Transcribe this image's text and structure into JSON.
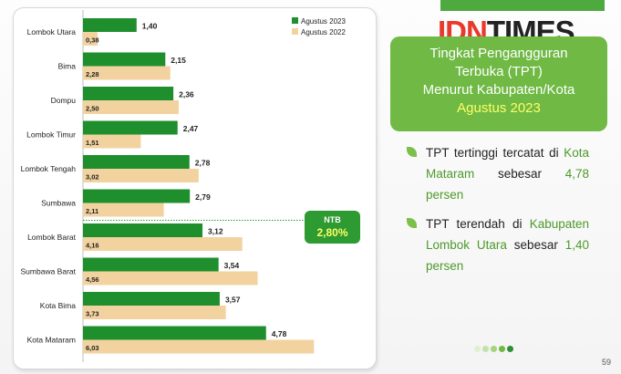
{
  "chart_data": {
    "type": "bar",
    "orientation": "horizontal",
    "categories": [
      "Lombok Utara",
      "Bima",
      "Dompu",
      "Lombok Timur",
      "Lombok Tengah",
      "Sumbawa",
      "Lombok Barat",
      "Sumbawa Barat",
      "Kota Bima",
      "Kota Mataram"
    ],
    "series": [
      {
        "name": "Agustus 2023",
        "color": "#1e8f2c",
        "values": [
          1.4,
          2.15,
          2.36,
          2.47,
          2.78,
          2.79,
          3.12,
          3.54,
          3.57,
          4.78
        ],
        "labels": [
          "1,40",
          "2,15",
          "2,36",
          "2,47",
          "2,78",
          "2,79",
          "3,12",
          "3,54",
          "3,57",
          "4,78"
        ]
      },
      {
        "name": "Agustus 2022",
        "color": "#f2d3a0",
        "values": [
          0.38,
          2.28,
          2.5,
          1.51,
          3.02,
          2.11,
          4.16,
          4.56,
          3.73,
          6.03
        ],
        "labels": [
          "0,38",
          "2,28",
          "2,50",
          "1,51",
          "3,02",
          "2,11",
          "4,16",
          "4,56",
          "3,73",
          "6,03"
        ]
      }
    ],
    "reference_line": {
      "label": "NTB",
      "value": 2.8,
      "value_label": "2,80%"
    },
    "legend_position": "top-right",
    "grid": false
  },
  "ntb": {
    "label": "NTB",
    "value": "2,80%"
  },
  "logo": {
    "idn": "IDN",
    "times": "TIMES"
  },
  "title": {
    "line1": "Tingkat Pengangguran",
    "line2": "Terbuka (TPT)",
    "line3": "Menurut Kabupaten/Kota",
    "line4": "Agustus 2023"
  },
  "bullets": [
    {
      "pre": "TPT tertinggi tercatat di ",
      "hl": "Kota Mataram",
      "post": " sebesar ",
      "hl2": "4,78 persen"
    },
    {
      "pre": "TPT terendah di ",
      "hl": "Kabupaten Lombok Utara",
      "post": " sebesar ",
      "hl2": "1,40 persen"
    }
  ],
  "dots": [
    "#dff0d0",
    "#c3e3a6",
    "#a5d47c",
    "#6fb944",
    "#2e8f3a"
  ],
  "page_number": "59"
}
